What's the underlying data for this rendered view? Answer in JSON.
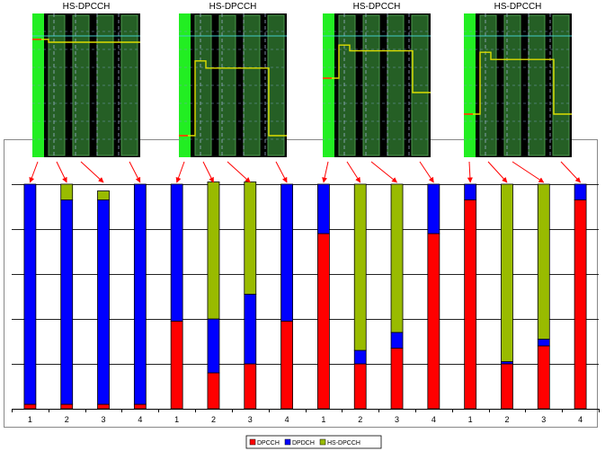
{
  "chart_data": {
    "type": "bar",
    "stacked": true,
    "groups": [
      "1",
      "2",
      "3",
      "4"
    ],
    "categories": [
      "1",
      "2",
      "3",
      "4",
      "1",
      "2",
      "3",
      "4",
      "1",
      "2",
      "3",
      "4",
      "1",
      "2",
      "3",
      "4"
    ],
    "ylim": [
      0,
      100
    ],
    "grid": true,
    "legend_placement": "bottom",
    "series": [
      {
        "name": "DPCCH",
        "color": "#ff0000",
        "values": [
          2,
          2,
          2,
          2,
          39,
          16,
          20,
          39,
          78,
          20,
          27,
          78,
          93,
          20,
          28,
          93
        ]
      },
      {
        "name": "DPDCH",
        "color": "#0000ff",
        "values": [
          98,
          91,
          91,
          98,
          61,
          24,
          31,
          61,
          22,
          6,
          7,
          22,
          7,
          1,
          3,
          7
        ]
      },
      {
        "name": "HS-DPCCH",
        "color": "#99bb00",
        "values": [
          0,
          7,
          4,
          0,
          0,
          61,
          50,
          0,
          0,
          74,
          66,
          0,
          0,
          79,
          69,
          0
        ]
      }
    ]
  },
  "scope_panels": [
    {
      "title": "HS-DPCCH"
    },
    {
      "title": "HS-DPCCH"
    },
    {
      "title": "HS-DPCCH"
    },
    {
      "title": "HS-DPCCH"
    }
  ],
  "colors": {
    "scope_bg": "#000000",
    "scope_slot": "#2a6a2a",
    "scope_active": "#22ee22",
    "scope_trace": "#dddd00",
    "scope_ref": "#44cccc",
    "arrow": "#ff0000"
  }
}
